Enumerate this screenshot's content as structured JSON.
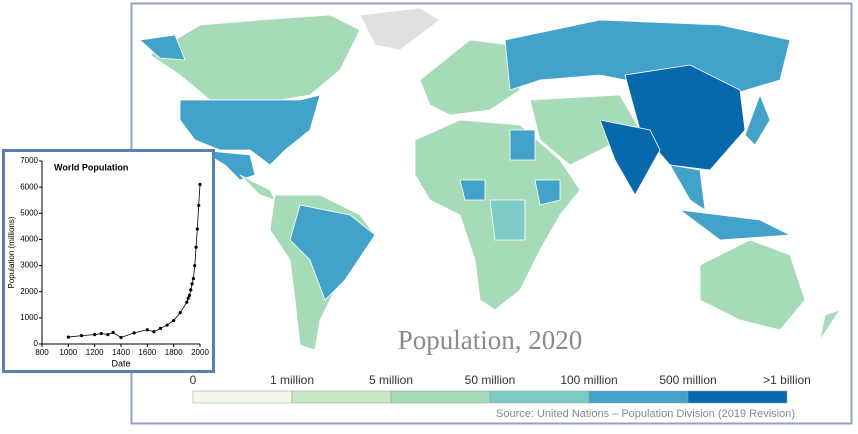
{
  "chart_data": [
    {
      "type": "line",
      "title": "World Population",
      "x_label": "Date",
      "y_label": "Population (millions)",
      "x": [
        1000,
        1100,
        1200,
        1250,
        1300,
        1340,
        1400,
        1500,
        1600,
        1650,
        1700,
        1750,
        1800,
        1850,
        1900,
        1910,
        1920,
        1930,
        1940,
        1950,
        1960,
        1970,
        1980,
        1990,
        2000
      ],
      "values": [
        265,
        320,
        360,
        400,
        360,
        440,
        250,
        425,
        545,
        470,
        600,
        720,
        900,
        1200,
        1600,
        1750,
        1860,
        2070,
        2300,
        2500,
        3000,
        3700,
        4400,
        5300,
        6100
      ],
      "color": "#000000",
      "xlim": [
        800,
        2000
      ],
      "xticks": [
        800,
        1000,
        1200,
        1400,
        1600,
        1800,
        2000
      ],
      "ylim": [
        0,
        7000
      ],
      "yticks": [
        0,
        1000,
        2000,
        3000,
        4000,
        5000,
        6000,
        7000
      ]
    }
  ],
  "map": {
    "title": "Population, 2020",
    "legend": {
      "labels": [
        "0",
        "1 million",
        "5 million",
        "50 million",
        "100 million",
        "500 million",
        ">1 billion"
      ],
      "colors": [
        "#f0f9ec",
        "#c6e8c4",
        "#a6dbb8",
        "#7ccbc4",
        "#43a2ca",
        "#0868ac"
      ]
    },
    "source": "Source: United Nations – Population Division (2019 Revision)"
  }
}
